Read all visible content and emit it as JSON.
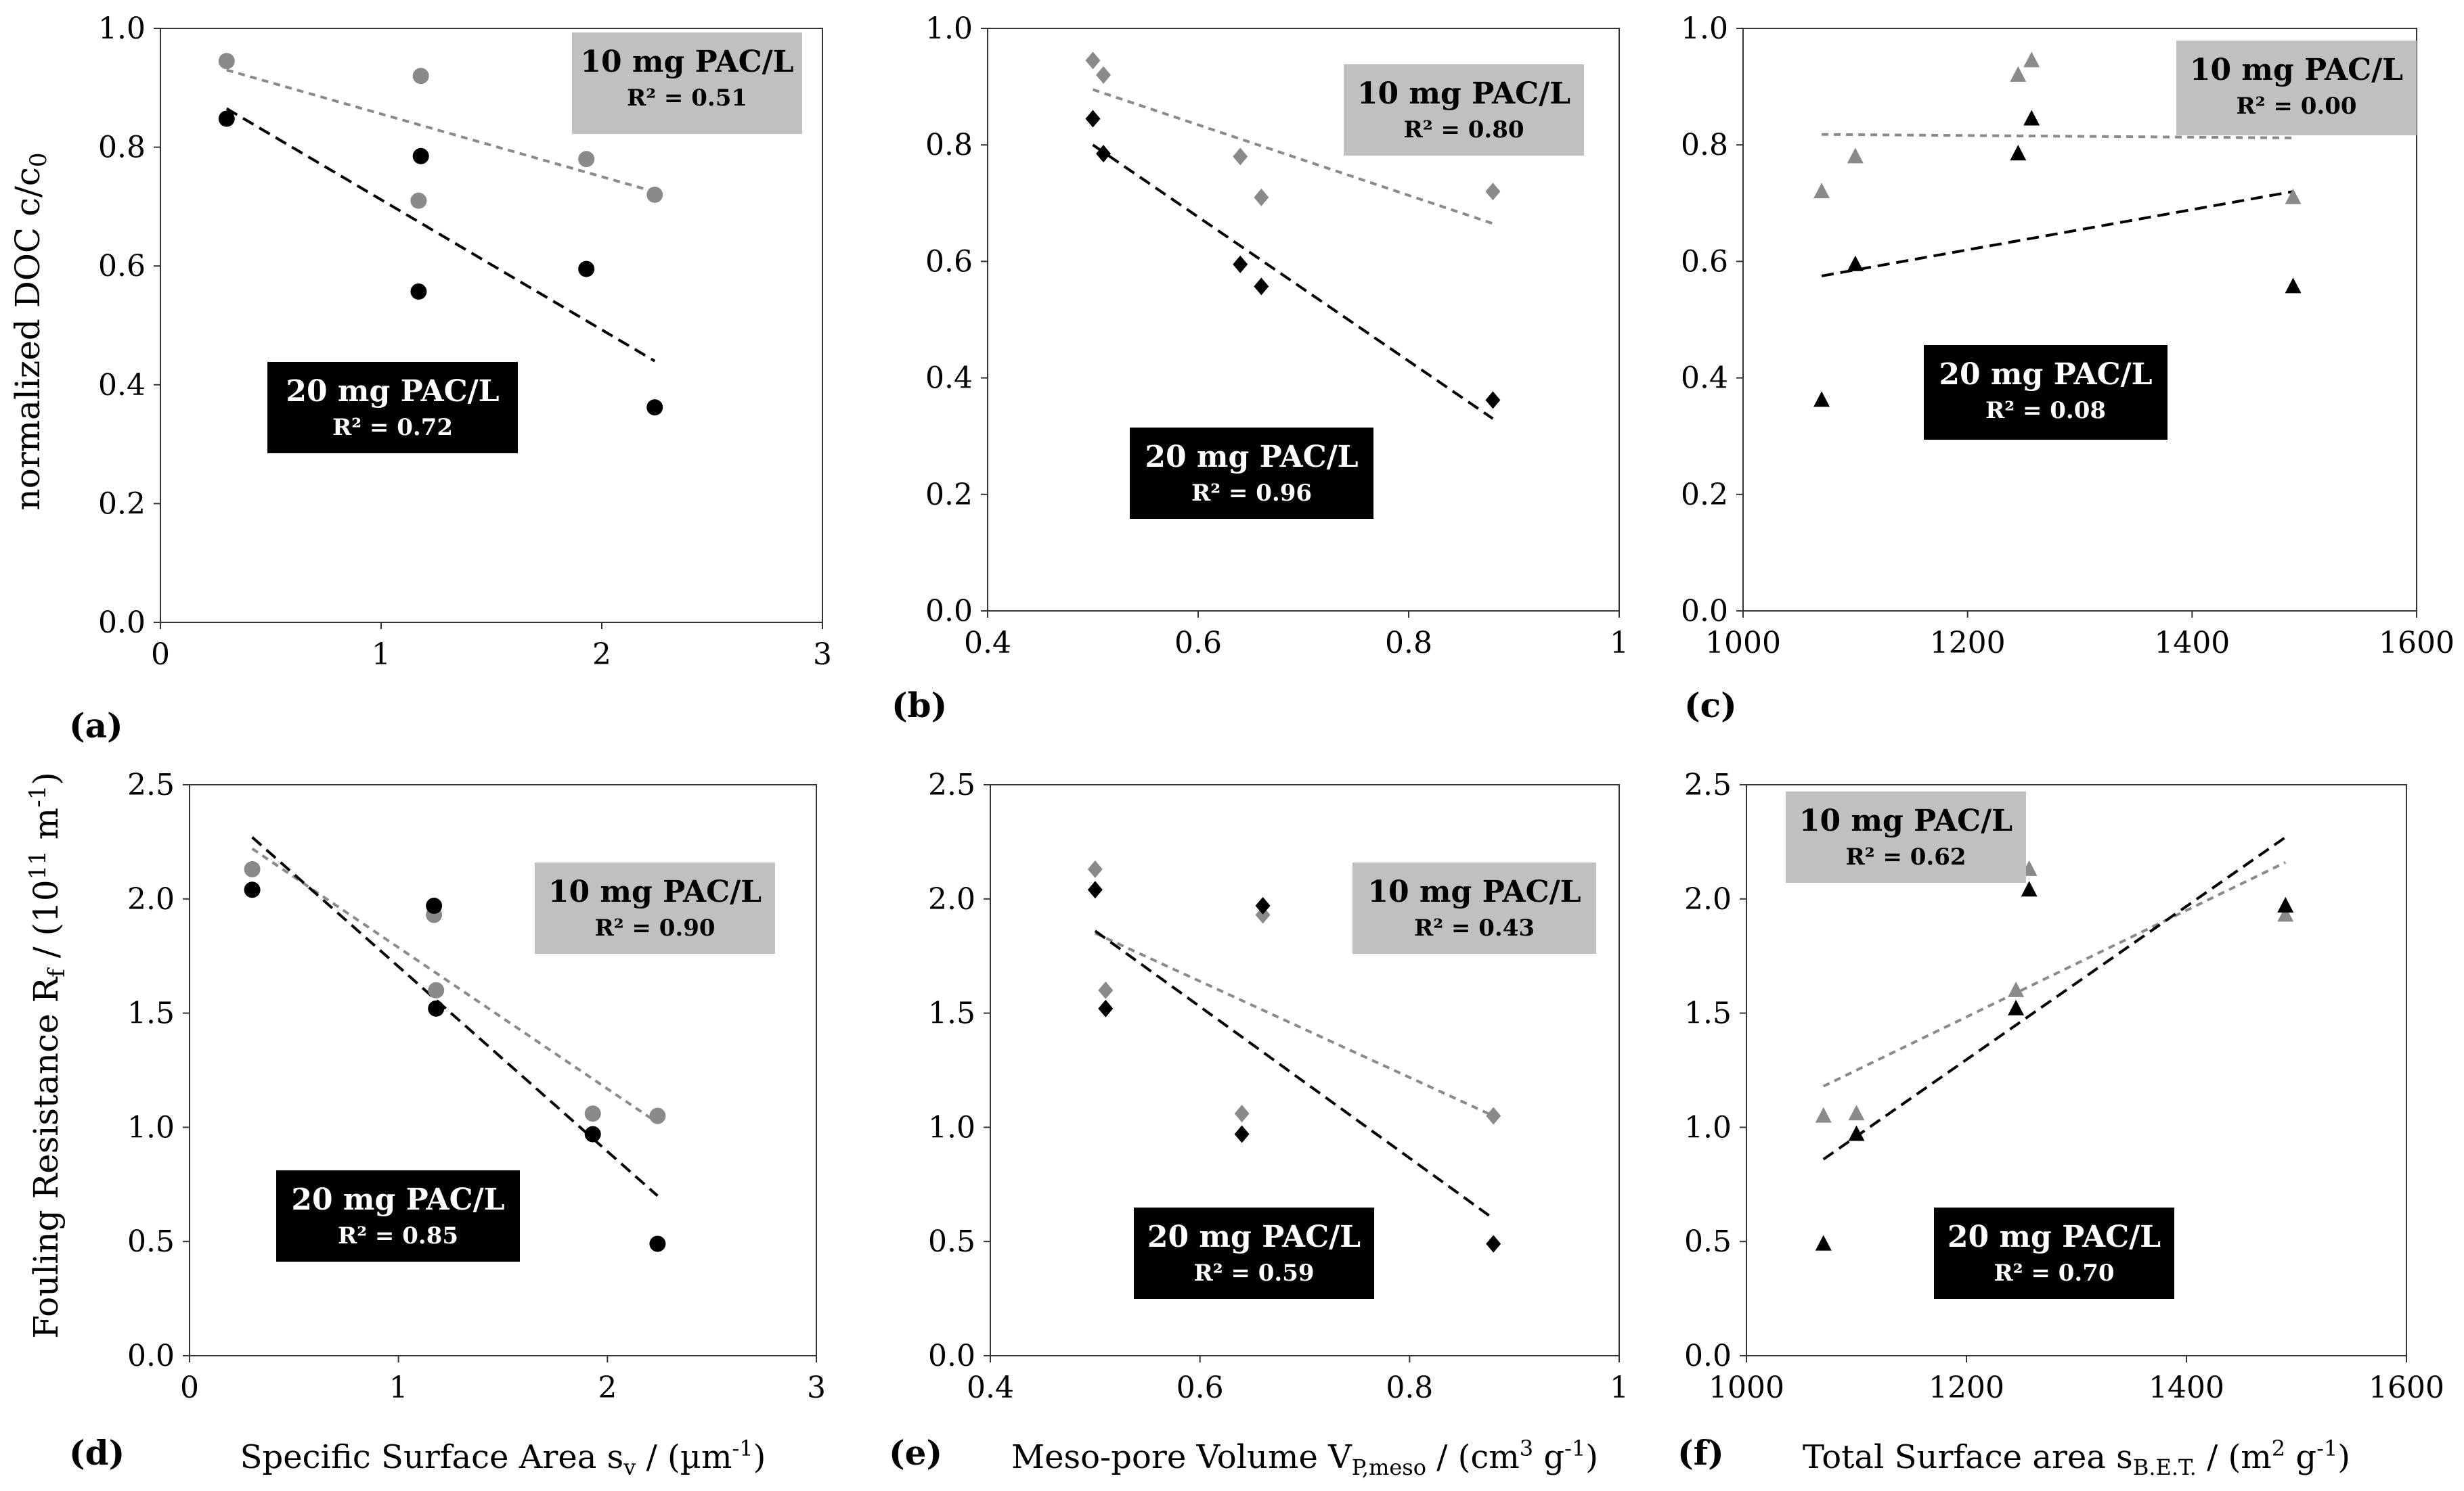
{
  "figure": {
    "ylabel_top_main": "normalized DOC c/c",
    "ylabel_top_sub": "0",
    "ylabel_bottom_main": "Fouling Resistance R",
    "ylabel_bottom_sub": "f",
    "ylabel_bottom_rest": " / (10",
    "ylabel_bottom_sup": "11",
    "ylabel_bottom_unit": " m",
    "ylabel_bottom_unit_sup": "-1",
    "ylabel_bottom_end": ")",
    "colors": {
      "gray": "#8a8a8a",
      "black": "#000000",
      "gray_box": "#c0c0c0",
      "black_box": "#000000"
    }
  },
  "chart_data": [
    {
      "id": "a",
      "panel_label": "(a)",
      "type": "scatter",
      "marker": "circle",
      "xlim": [
        0,
        3
      ],
      "ylim": [
        0,
        1
      ],
      "xticks": [
        "0",
        "1",
        "2",
        "3"
      ],
      "yticks": [
        "0.0",
        "0.2",
        "0.4",
        "0.6",
        "0.8",
        "1.0"
      ],
      "xlabel": "",
      "ylabel": "normalized DOC c/c0",
      "series": [
        {
          "name": "10 mg PAC/L",
          "color": "gray",
          "points": [
            [
              0.3,
              0.945
            ],
            [
              1.17,
              0.71
            ],
            [
              1.18,
              0.92
            ],
            [
              1.93,
              0.78
            ],
            [
              2.24,
              0.72
            ]
          ],
          "trend": [
            [
              0.3,
              0.93
            ],
            [
              2.24,
              0.725
            ]
          ]
        },
        {
          "name": "20 mg PAC/L",
          "color": "black",
          "points": [
            [
              0.3,
              0.848
            ],
            [
              1.17,
              0.557
            ],
            [
              1.18,
              0.785
            ],
            [
              1.93,
              0.595
            ],
            [
              2.24,
              0.362
            ]
          ],
          "trend": [
            [
              0.3,
              0.865
            ],
            [
              2.24,
              0.44
            ]
          ]
        }
      ],
      "annotations": [
        {
          "title": "10 mg PAC/L",
          "r2": "R² = 0.51",
          "style": "gray",
          "pos": "top-right"
        },
        {
          "title": "20 mg PAC/L",
          "r2": "R² = 0.72",
          "style": "black",
          "pos": "middle-left"
        }
      ]
    },
    {
      "id": "b",
      "panel_label": "(b)",
      "type": "scatter",
      "marker": "diamond",
      "xlim": [
        0.4,
        1
      ],
      "ylim": [
        0,
        1
      ],
      "xticks": [
        "0.4",
        "0.6",
        "0.8",
        "1"
      ],
      "yticks": [
        "0.0",
        "0.2",
        "0.4",
        "0.6",
        "0.8",
        "1.0"
      ],
      "xlabel": "",
      "ylabel": "",
      "series": [
        {
          "name": "10 mg PAC/L",
          "color": "gray",
          "points": [
            [
              0.5,
              0.945
            ],
            [
              0.51,
              0.92
            ],
            [
              0.64,
              0.78
            ],
            [
              0.66,
              0.71
            ],
            [
              0.88,
              0.72
            ]
          ],
          "trend": [
            [
              0.5,
              0.895
            ],
            [
              0.88,
              0.665
            ]
          ]
        },
        {
          "name": "20 mg PAC/L",
          "color": "black",
          "points": [
            [
              0.5,
              0.845
            ],
            [
              0.51,
              0.785
            ],
            [
              0.64,
              0.595
            ],
            [
              0.66,
              0.557
            ],
            [
              0.88,
              0.362
            ]
          ],
          "trend": [
            [
              0.5,
              0.8
            ],
            [
              0.88,
              0.33
            ]
          ]
        }
      ],
      "annotations": [
        {
          "title": "10 mg PAC/L",
          "r2": "R² = 0.80",
          "style": "gray",
          "pos": "top-right"
        },
        {
          "title": "20 mg PAC/L",
          "r2": "R² = 0.96",
          "style": "black",
          "pos": "bottom-center"
        }
      ]
    },
    {
      "id": "c",
      "panel_label": "(c)",
      "type": "scatter",
      "marker": "triangle",
      "xlim": [
        1000,
        1600
      ],
      "ylim": [
        0,
        1
      ],
      "xticks": [
        "1000",
        "1200",
        "1400",
        "1600"
      ],
      "yticks": [
        "0.0",
        "0.2",
        "0.4",
        "0.6",
        "0.8",
        "1.0"
      ],
      "xlabel": "",
      "ylabel": "",
      "series": [
        {
          "name": "10 mg PAC/L",
          "color": "gray",
          "points": [
            [
              1070,
              0.72
            ],
            [
              1100,
              0.78
            ],
            [
              1245,
              0.92
            ],
            [
              1257,
              0.945
            ],
            [
              1490,
              0.71
            ]
          ],
          "trend": [
            [
              1070,
              0.818
            ],
            [
              1490,
              0.812
            ]
          ]
        },
        {
          "name": "20 mg PAC/L",
          "color": "black",
          "points": [
            [
              1070,
              0.362
            ],
            [
              1100,
              0.595
            ],
            [
              1245,
              0.785
            ],
            [
              1257,
              0.845
            ],
            [
              1490,
              0.557
            ]
          ],
          "trend": [
            [
              1070,
              0.575
            ],
            [
              1490,
              0.72
            ]
          ]
        }
      ],
      "annotations": [
        {
          "title": "10 mg PAC/L",
          "r2": "R² = 0.00",
          "style": "gray",
          "pos": "top-right"
        },
        {
          "title": "20 mg PAC/L",
          "r2": "R² = 0.08",
          "style": "black",
          "pos": "middle-center"
        }
      ]
    },
    {
      "id": "d",
      "panel_label": "(d)",
      "type": "scatter",
      "marker": "circle",
      "xlim": [
        0,
        3
      ],
      "ylim": [
        0,
        2.5
      ],
      "xticks": [
        "0",
        "1",
        "2",
        "3"
      ],
      "yticks": [
        "0.0",
        "0.5",
        "1.0",
        "1.5",
        "2.0",
        "2.5"
      ],
      "xlabel": "Specific Surface Area s",
      "xlabel_sub": "v",
      "xlabel_rest": " / (µm",
      "xlabel_sup": "-1",
      "xlabel_end": ")",
      "ylabel": "Fouling Resistance Rf / (10^11 m^-1)",
      "series": [
        {
          "name": "10 mg PAC/L",
          "color": "gray",
          "points": [
            [
              0.3,
              2.13
            ],
            [
              1.17,
              1.93
            ],
            [
              1.18,
              1.6
            ],
            [
              1.93,
              1.06
            ],
            [
              2.24,
              1.05
            ]
          ],
          "trend": [
            [
              0.3,
              2.22
            ],
            [
              2.24,
              1.02
            ]
          ]
        },
        {
          "name": "20 mg PAC/L",
          "color": "black",
          "points": [
            [
              0.3,
              2.04
            ],
            [
              1.17,
              1.97
            ],
            [
              1.18,
              1.52
            ],
            [
              1.93,
              0.97
            ],
            [
              2.24,
              0.49
            ]
          ],
          "trend": [
            [
              0.3,
              2.27
            ],
            [
              2.24,
              0.7
            ]
          ]
        }
      ],
      "annotations": [
        {
          "title": "10 mg PAC/L",
          "r2": "R² = 0.90",
          "style": "gray",
          "pos": "middle-right"
        },
        {
          "title": "20 mg PAC/L",
          "r2": "R² = 0.85",
          "style": "black",
          "pos": "bottom-center"
        }
      ]
    },
    {
      "id": "e",
      "panel_label": "(e)",
      "type": "scatter",
      "marker": "diamond",
      "xlim": [
        0.4,
        1
      ],
      "ylim": [
        0,
        2.5
      ],
      "xticks": [
        "0.4",
        "0.6",
        "0.8",
        "1"
      ],
      "yticks": [
        "0.0",
        "0.5",
        "1.0",
        "1.5",
        "2.0",
        "2.5"
      ],
      "xlabel": "Meso-pore Volume V",
      "xlabel_sub": "P,meso",
      "xlabel_rest": " / (cm",
      "xlabel_sup": "3",
      "xlabel_end": " g",
      "xlabel_sup2": "-1",
      "xlabel_end2": ")",
      "ylabel": "",
      "series": [
        {
          "name": "10 mg PAC/L",
          "color": "gray",
          "points": [
            [
              0.5,
              2.13
            ],
            [
              0.51,
              1.6
            ],
            [
              0.64,
              1.06
            ],
            [
              0.66,
              1.93
            ],
            [
              0.88,
              1.05
            ]
          ],
          "trend": [
            [
              0.5,
              1.85
            ],
            [
              0.88,
              1.05
            ]
          ]
        },
        {
          "name": "20 mg PAC/L",
          "color": "black",
          "points": [
            [
              0.5,
              2.04
            ],
            [
              0.51,
              1.52
            ],
            [
              0.64,
              0.97
            ],
            [
              0.66,
              1.97
            ],
            [
              0.88,
              0.49
            ]
          ],
          "trend": [
            [
              0.5,
              1.86
            ],
            [
              0.88,
              0.6
            ]
          ]
        }
      ],
      "annotations": [
        {
          "title": "10 mg PAC/L",
          "r2": "R² = 0.43",
          "style": "gray",
          "pos": "middle-right"
        },
        {
          "title": "20 mg PAC/L",
          "r2": "R² = 0.59",
          "style": "black",
          "pos": "bottom-center"
        }
      ]
    },
    {
      "id": "f",
      "panel_label": "(f)",
      "type": "scatter",
      "marker": "triangle",
      "xlim": [
        1000,
        1600
      ],
      "ylim": [
        0,
        2.5
      ],
      "xticks": [
        "1000",
        "1200",
        "1400",
        "1600"
      ],
      "yticks": [
        "0.0",
        "0.5",
        "1.0",
        "1.5",
        "2.0",
        "2.5"
      ],
      "xlabel": "Total Surface area s",
      "xlabel_sub": "B.E.T.",
      "xlabel_rest": " / (m",
      "xlabel_sup": "2",
      "xlabel_end": " g",
      "xlabel_sup2": "-1",
      "xlabel_end2": ")",
      "ylabel": "",
      "series": [
        {
          "name": "10 mg PAC/L",
          "color": "gray",
          "points": [
            [
              1070,
              1.05
            ],
            [
              1100,
              1.06
            ],
            [
              1245,
              1.6
            ],
            [
              1257,
              2.13
            ],
            [
              1490,
              1.93
            ]
          ],
          "trend": [
            [
              1070,
              1.18
            ],
            [
              1490,
              2.16
            ]
          ]
        },
        {
          "name": "20 mg PAC/L",
          "color": "black",
          "points": [
            [
              1070,
              0.49
            ],
            [
              1100,
              0.97
            ],
            [
              1245,
              1.52
            ],
            [
              1257,
              2.04
            ],
            [
              1490,
              1.97
            ]
          ],
          "trend": [
            [
              1070,
              0.86
            ],
            [
              1490,
              2.27
            ]
          ]
        }
      ],
      "annotations": [
        {
          "title": "10 mg PAC/L",
          "r2": "R² = 0.62",
          "style": "gray",
          "pos": "top-left"
        },
        {
          "title": "20 mg PAC/L",
          "r2": "R² = 0.70",
          "style": "black",
          "pos": "bottom-right"
        }
      ]
    }
  ]
}
